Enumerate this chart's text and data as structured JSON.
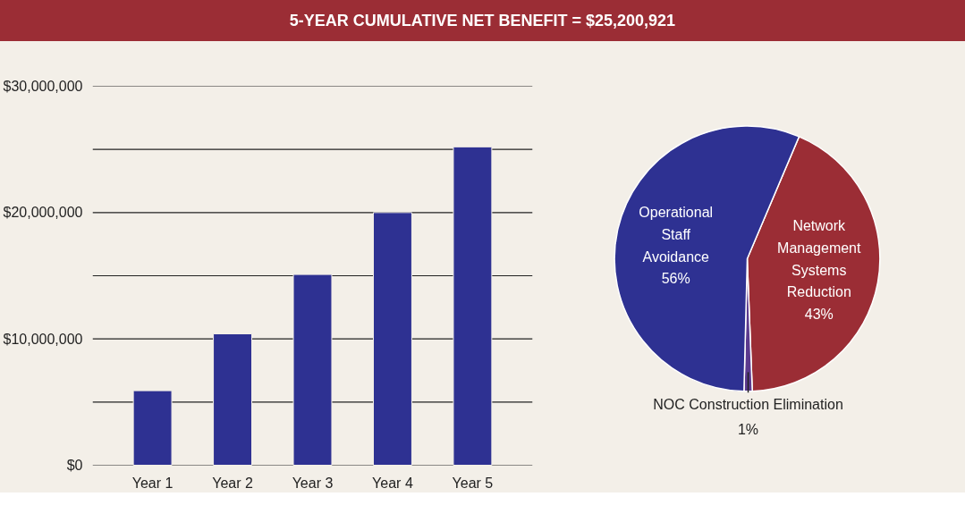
{
  "chart_data": [
    {
      "type": "bar",
      "title": "5-YEAR CUMULATIVE NET BENEFIT = $25,200,921",
      "categories": [
        "Year 1",
        "Year 2",
        "Year 3",
        "Year 4",
        "Year 5"
      ],
      "values": [
        5900000,
        10400000,
        15100000,
        20000000,
        25200000
      ],
      "color": "#2e3192",
      "ylim": [
        0,
        30000000
      ],
      "yticks": [
        {
          "value": 0,
          "label": "$0"
        },
        {
          "value": 5000000,
          "label": null
        },
        {
          "value": 10000000,
          "label": "$10,000,000"
        },
        {
          "value": 15000000,
          "label": null
        },
        {
          "value": 20000000,
          "label": "$20,000,000"
        },
        {
          "value": 25000000,
          "label": null
        },
        {
          "value": 30000000,
          "label": "$30,000,000"
        }
      ],
      "grid": "y"
    },
    {
      "type": "pie",
      "categories": [
        "Network Management Systems Reduction",
        "NOC Construction Elimination",
        "Operational Staff Avoidance"
      ],
      "values": [
        43,
        1,
        56
      ],
      "colors": [
        "#9b2d35",
        "#5b3a8e",
        "#2e3192"
      ],
      "value_labels": [
        "43%",
        "1%",
        "56%"
      ]
    }
  ]
}
